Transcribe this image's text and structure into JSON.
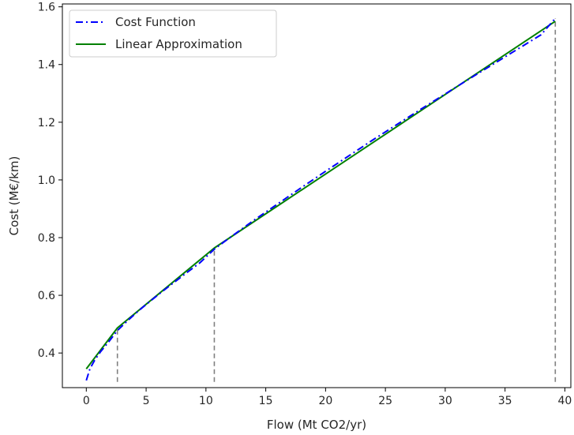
{
  "chart_data": {
    "type": "line",
    "title": "",
    "xlabel": "Flow (Mt CO2/yr)",
    "ylabel": "Cost (M€/km)",
    "xlim": [
      -2,
      40.5
    ],
    "ylim": [
      0.28,
      1.61
    ],
    "xticks": [
      0,
      5,
      10,
      15,
      20,
      25,
      30,
      35,
      40
    ],
    "yticks": [
      0.4,
      0.6,
      0.8,
      1.0,
      1.2,
      1.4,
      1.6
    ],
    "xtick_labels": [
      "0",
      "5",
      "10",
      "15",
      "20",
      "25",
      "30",
      "35",
      "40"
    ],
    "ytick_labels": [
      "0.4",
      "0.6",
      "0.8",
      "1.0",
      "1.2",
      "1.4",
      "1.6"
    ],
    "grid": false,
    "legend_position": "upper-left",
    "series": [
      {
        "name": "Cost Function",
        "style": "dashdot",
        "color": "#0000ff",
        "x": [
          0.0,
          0.3,
          0.7,
          1.2,
          1.8,
          2.6,
          3.5,
          4.5,
          5.5,
          6.5,
          8.0,
          9.5,
          10.7,
          12.0,
          14.0,
          16.0,
          18.0,
          20.0,
          22.0,
          24.0,
          26.0,
          28.0,
          30.0,
          32.0,
          34.0,
          36.0,
          38.0,
          39.2
        ],
        "y": [
          0.305,
          0.345,
          0.375,
          0.405,
          0.435,
          0.478,
          0.514,
          0.551,
          0.585,
          0.618,
          0.666,
          0.713,
          0.76,
          0.8,
          0.86,
          0.917,
          0.974,
          1.03,
          1.085,
          1.14,
          1.193,
          1.246,
          1.298,
          1.35,
          1.401,
          1.452,
          1.503,
          1.56
        ]
      },
      {
        "name": "Linear Approximation",
        "style": "solid",
        "color": "#008000",
        "x": [
          0.0,
          2.6,
          10.7,
          39.2
        ],
        "y": [
          0.345,
          0.487,
          0.764,
          1.55
        ]
      }
    ],
    "breakpoints": {
      "color": "#808080",
      "x": [
        2.6,
        10.7,
        39.2
      ],
      "y_top": [
        0.487,
        0.764,
        1.56
      ],
      "y_bottom": 0.3
    }
  }
}
